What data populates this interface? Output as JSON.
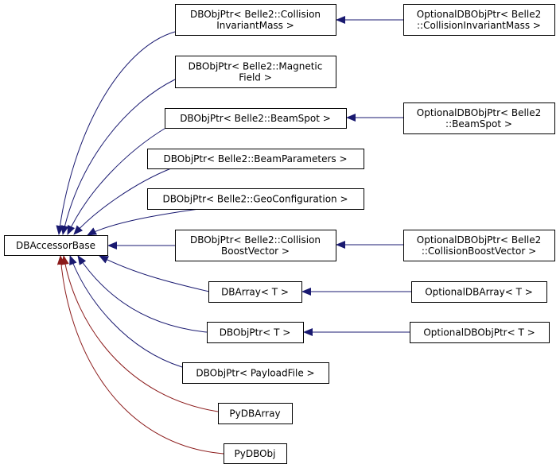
{
  "nodes": [
    {
      "lines": [
        "DBAccessorBase"
      ]
    },
    {
      "lines": [
        "DBObjPtr< Belle2::Collision",
        "InvariantMass >"
      ]
    },
    {
      "lines": [
        "OptionalDBObjPtr< Belle2",
        "::CollisionInvariantMass >"
      ]
    },
    {
      "lines": [
        "DBObjPtr< Belle2::Magnetic",
        "Field >"
      ]
    },
    {
      "lines": [
        "DBObjPtr< Belle2::BeamSpot >"
      ]
    },
    {
      "lines": [
        "OptionalDBObjPtr< Belle2",
        "::BeamSpot >"
      ]
    },
    {
      "lines": [
        "DBObjPtr< Belle2::BeamParameters >"
      ]
    },
    {
      "lines": [
        "DBObjPtr< Belle2::GeoConfiguration >"
      ]
    },
    {
      "lines": [
        "DBObjPtr< Belle2::Collision",
        "BoostVector >"
      ]
    },
    {
      "lines": [
        "OptionalDBObjPtr< Belle2",
        "::CollisionBoostVector >"
      ]
    },
    {
      "lines": [
        "DBArray< T >"
      ]
    },
    {
      "lines": [
        "OptionalDBArray< T >"
      ]
    },
    {
      "lines": [
        "DBObjPtr< T >"
      ]
    },
    {
      "lines": [
        "OptionalDBObjPtr< T >"
      ]
    },
    {
      "lines": [
        "DBObjPtr< PayloadFile >"
      ]
    },
    {
      "lines": [
        "PyDBArray"
      ]
    },
    {
      "lines": [
        "PyDBObj"
      ]
    }
  ]
}
